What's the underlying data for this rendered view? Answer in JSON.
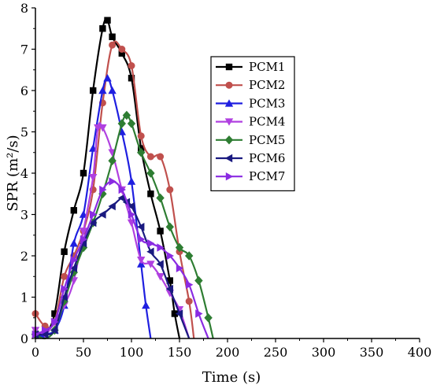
{
  "chart_data": {
    "type": "line",
    "xlabel": "Time (s)",
    "ylabel": "SPR (m²/s)",
    "xlim": [
      0,
      400
    ],
    "ylim": [
      0,
      8
    ],
    "x_ticks": [
      0,
      50,
      100,
      150,
      200,
      250,
      300,
      350,
      400
    ],
    "y_ticks": [
      0,
      1,
      2,
      3,
      4,
      5,
      6,
      7,
      8
    ],
    "grid": false,
    "legend_position": "top-right",
    "series": [
      {
        "name": "PCM1",
        "color": "#000000",
        "marker": "square",
        "x": [
          0,
          10,
          20,
          30,
          40,
          50,
          60,
          70,
          75,
          80,
          90,
          100,
          110,
          120,
          130,
          140,
          145,
          150
        ],
        "y": [
          0.1,
          0.1,
          0.6,
          2.1,
          3.1,
          4.0,
          6.0,
          7.5,
          7.7,
          7.3,
          6.9,
          6.3,
          4.6,
          3.5,
          2.6,
          1.4,
          0.6,
          0.0
        ]
      },
      {
        "name": "PCM2",
        "color": "#C0504D",
        "marker": "circle",
        "x": [
          0,
          10,
          20,
          30,
          40,
          50,
          60,
          70,
          80,
          90,
          100,
          110,
          120,
          130,
          140,
          150,
          160,
          165
        ],
        "y": [
          0.6,
          0.3,
          0.4,
          1.5,
          2.0,
          2.6,
          3.6,
          5.7,
          7.1,
          7.0,
          6.6,
          4.9,
          4.4,
          4.4,
          3.6,
          2.1,
          0.9,
          0.0
        ]
      },
      {
        "name": "PCM3",
        "color": "#1F1FE0",
        "marker": "triangle-up",
        "x": [
          0,
          10,
          20,
          30,
          40,
          50,
          60,
          70,
          75,
          80,
          90,
          100,
          110,
          115,
          120
        ],
        "y": [
          0.0,
          0.1,
          0.2,
          0.8,
          2.3,
          3.0,
          4.6,
          6.0,
          6.3,
          6.0,
          5.0,
          3.8,
          1.8,
          0.8,
          0.0
        ]
      },
      {
        "name": "PCM4",
        "color": "#B040E0",
        "marker": "triangle-down",
        "x": [
          0,
          10,
          20,
          30,
          40,
          50,
          60,
          65,
          70,
          80,
          90,
          100,
          110,
          120,
          130,
          140,
          150,
          160
        ],
        "y": [
          0.2,
          0.1,
          0.4,
          0.8,
          1.4,
          2.6,
          3.9,
          5.1,
          5.1,
          4.5,
          3.6,
          2.8,
          1.9,
          1.8,
          1.5,
          1.1,
          0.7,
          0.0
        ]
      },
      {
        "name": "PCM5",
        "color": "#2E7D32",
        "marker": "diamond",
        "x": [
          0,
          10,
          20,
          30,
          40,
          50,
          60,
          70,
          80,
          90,
          95,
          100,
          110,
          120,
          130,
          140,
          150,
          160,
          170,
          180,
          185
        ],
        "y": [
          0.1,
          0.0,
          0.2,
          0.9,
          1.6,
          2.2,
          2.8,
          3.5,
          4.3,
          5.2,
          5.4,
          5.2,
          4.5,
          4.0,
          3.4,
          2.7,
          2.2,
          2.0,
          1.4,
          0.5,
          0.0
        ]
      },
      {
        "name": "PCM6",
        "color": "#1A1A80",
        "marker": "triangle-left",
        "x": [
          0,
          10,
          20,
          30,
          40,
          50,
          60,
          70,
          80,
          90,
          95,
          100,
          110,
          120,
          130,
          140,
          150,
          160
        ],
        "y": [
          0.1,
          0.1,
          0.2,
          1.0,
          1.7,
          2.3,
          2.8,
          3.0,
          3.2,
          3.4,
          3.3,
          3.2,
          2.7,
          2.1,
          1.8,
          1.2,
          0.6,
          0.0
        ]
      },
      {
        "name": "PCM7",
        "color": "#8A2BE2",
        "marker": "triangle-right",
        "x": [
          0,
          10,
          20,
          30,
          40,
          50,
          60,
          70,
          80,
          90,
          100,
          110,
          120,
          130,
          140,
          150,
          160,
          170,
          180
        ],
        "y": [
          0.1,
          0.2,
          0.4,
          1.2,
          1.9,
          2.4,
          3.0,
          3.6,
          3.8,
          3.6,
          3.0,
          2.4,
          2.3,
          2.2,
          2.0,
          1.7,
          1.3,
          0.6,
          0.0
        ]
      }
    ]
  }
}
